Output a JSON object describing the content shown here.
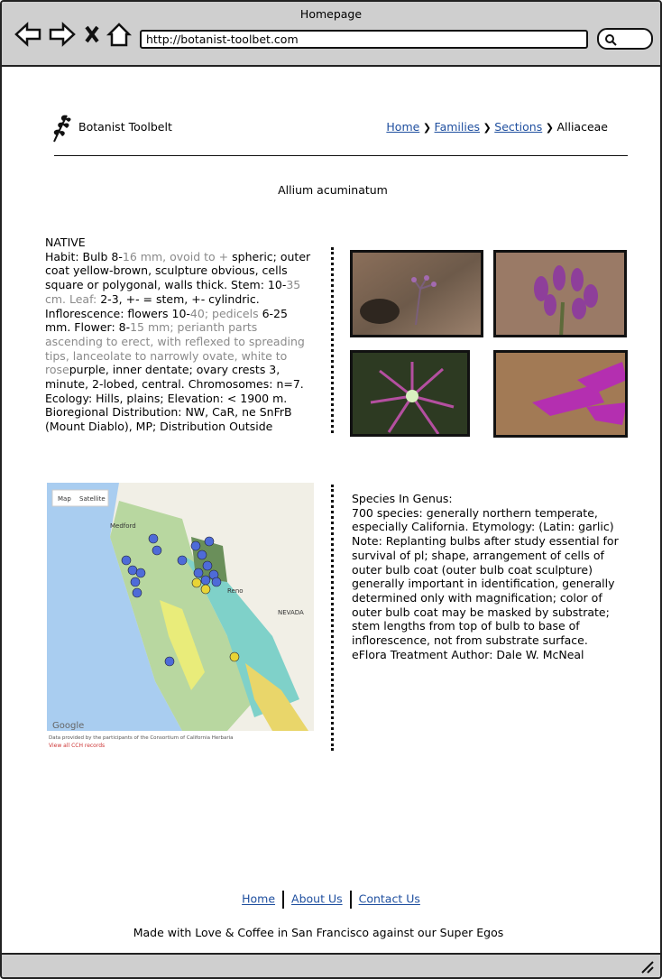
{
  "browser": {
    "title": "Homepage",
    "url": "http://botanist-toolbet.com"
  },
  "header": {
    "brand": "Botanist Toolbelt",
    "breadcrumb": [
      {
        "text": "Home",
        "link": true
      },
      {
        "text": "Families",
        "link": true
      },
      {
        "text": "Sections",
        "link": true
      },
      {
        "text": "Alliaceae",
        "link": false
      }
    ]
  },
  "species": {
    "name": "Allium acuminatum",
    "status": "NATIVE",
    "description": [
      {
        "text": "Habit: Bulb 8-",
        "color": "#000000"
      },
      {
        "text": "16 mm, ovoid to +",
        "color": "#8a8a8a"
      },
      {
        "text": " spheric; outer coat yellow-brown, sculpture obvious, cells square or polygonal, walls thick. Stem: 10-",
        "color": "#000000"
      },
      {
        "text": "35 cm. Leaf: ",
        "color": "#8a8a8a"
      },
      {
        "text": "2-3, +- = stem, +- cylindric. Inflorescence: flowers 10-",
        "color": "#000000"
      },
      {
        "text": "40; pedicels ",
        "color": "#8a8a8a"
      },
      {
        "text": "6-25 mm. Flower: 8-",
        "color": "#000000"
      },
      {
        "text": "15 mm; perianth parts ascending to erect, with reflexed to spreading tips, lanceolate to narrowly ovate, white to rose",
        "color": "#8a8a8a"
      },
      {
        "text": "purple, inner dentate; ovary crests 3, minute, 2-lobed, central. Chromosomes: n=7. Ecology: Hills, plains; Elevation: < 1900 m. Bioregional Distribution: NW, CaR, ne SnFrB (Mount Diablo), MP; Distribution Outside California: to British Columbia, Rocky Mountains, New Mexico.",
        "color": "#000000"
      }
    ]
  },
  "map": {
    "tabs": [
      "Map",
      "Satellite"
    ],
    "places": [
      "Medford",
      "NEVADA",
      "Reno"
    ],
    "brand": "Google",
    "attribution": "Data provided by the participants of the Consortium of California Herbaria",
    "records_link": "View all CCH records"
  },
  "genus": {
    "heading": "Species In Genus:",
    "text": "700 species: generally northern temperate, especially California. Etymology: (Latin: garlic) Note: Replanting bulbs after study essential for survival of pl; shape, arrangement of cells of outer bulb coat (outer bulb coat sculpture) generally important in identification, generally determined only with magnification; color of outer bulb coat may be masked by substrate; stem lengths from top of bulb to base of inflorescence, not from substrate surface.",
    "author": "eFlora Treatment Author: Dale W. McNeal"
  },
  "footer": {
    "links": [
      "Home",
      "About Us",
      "Contact Us"
    ],
    "tagline": "Made with Love & Coffee in San Francisco against our Super Egos"
  }
}
